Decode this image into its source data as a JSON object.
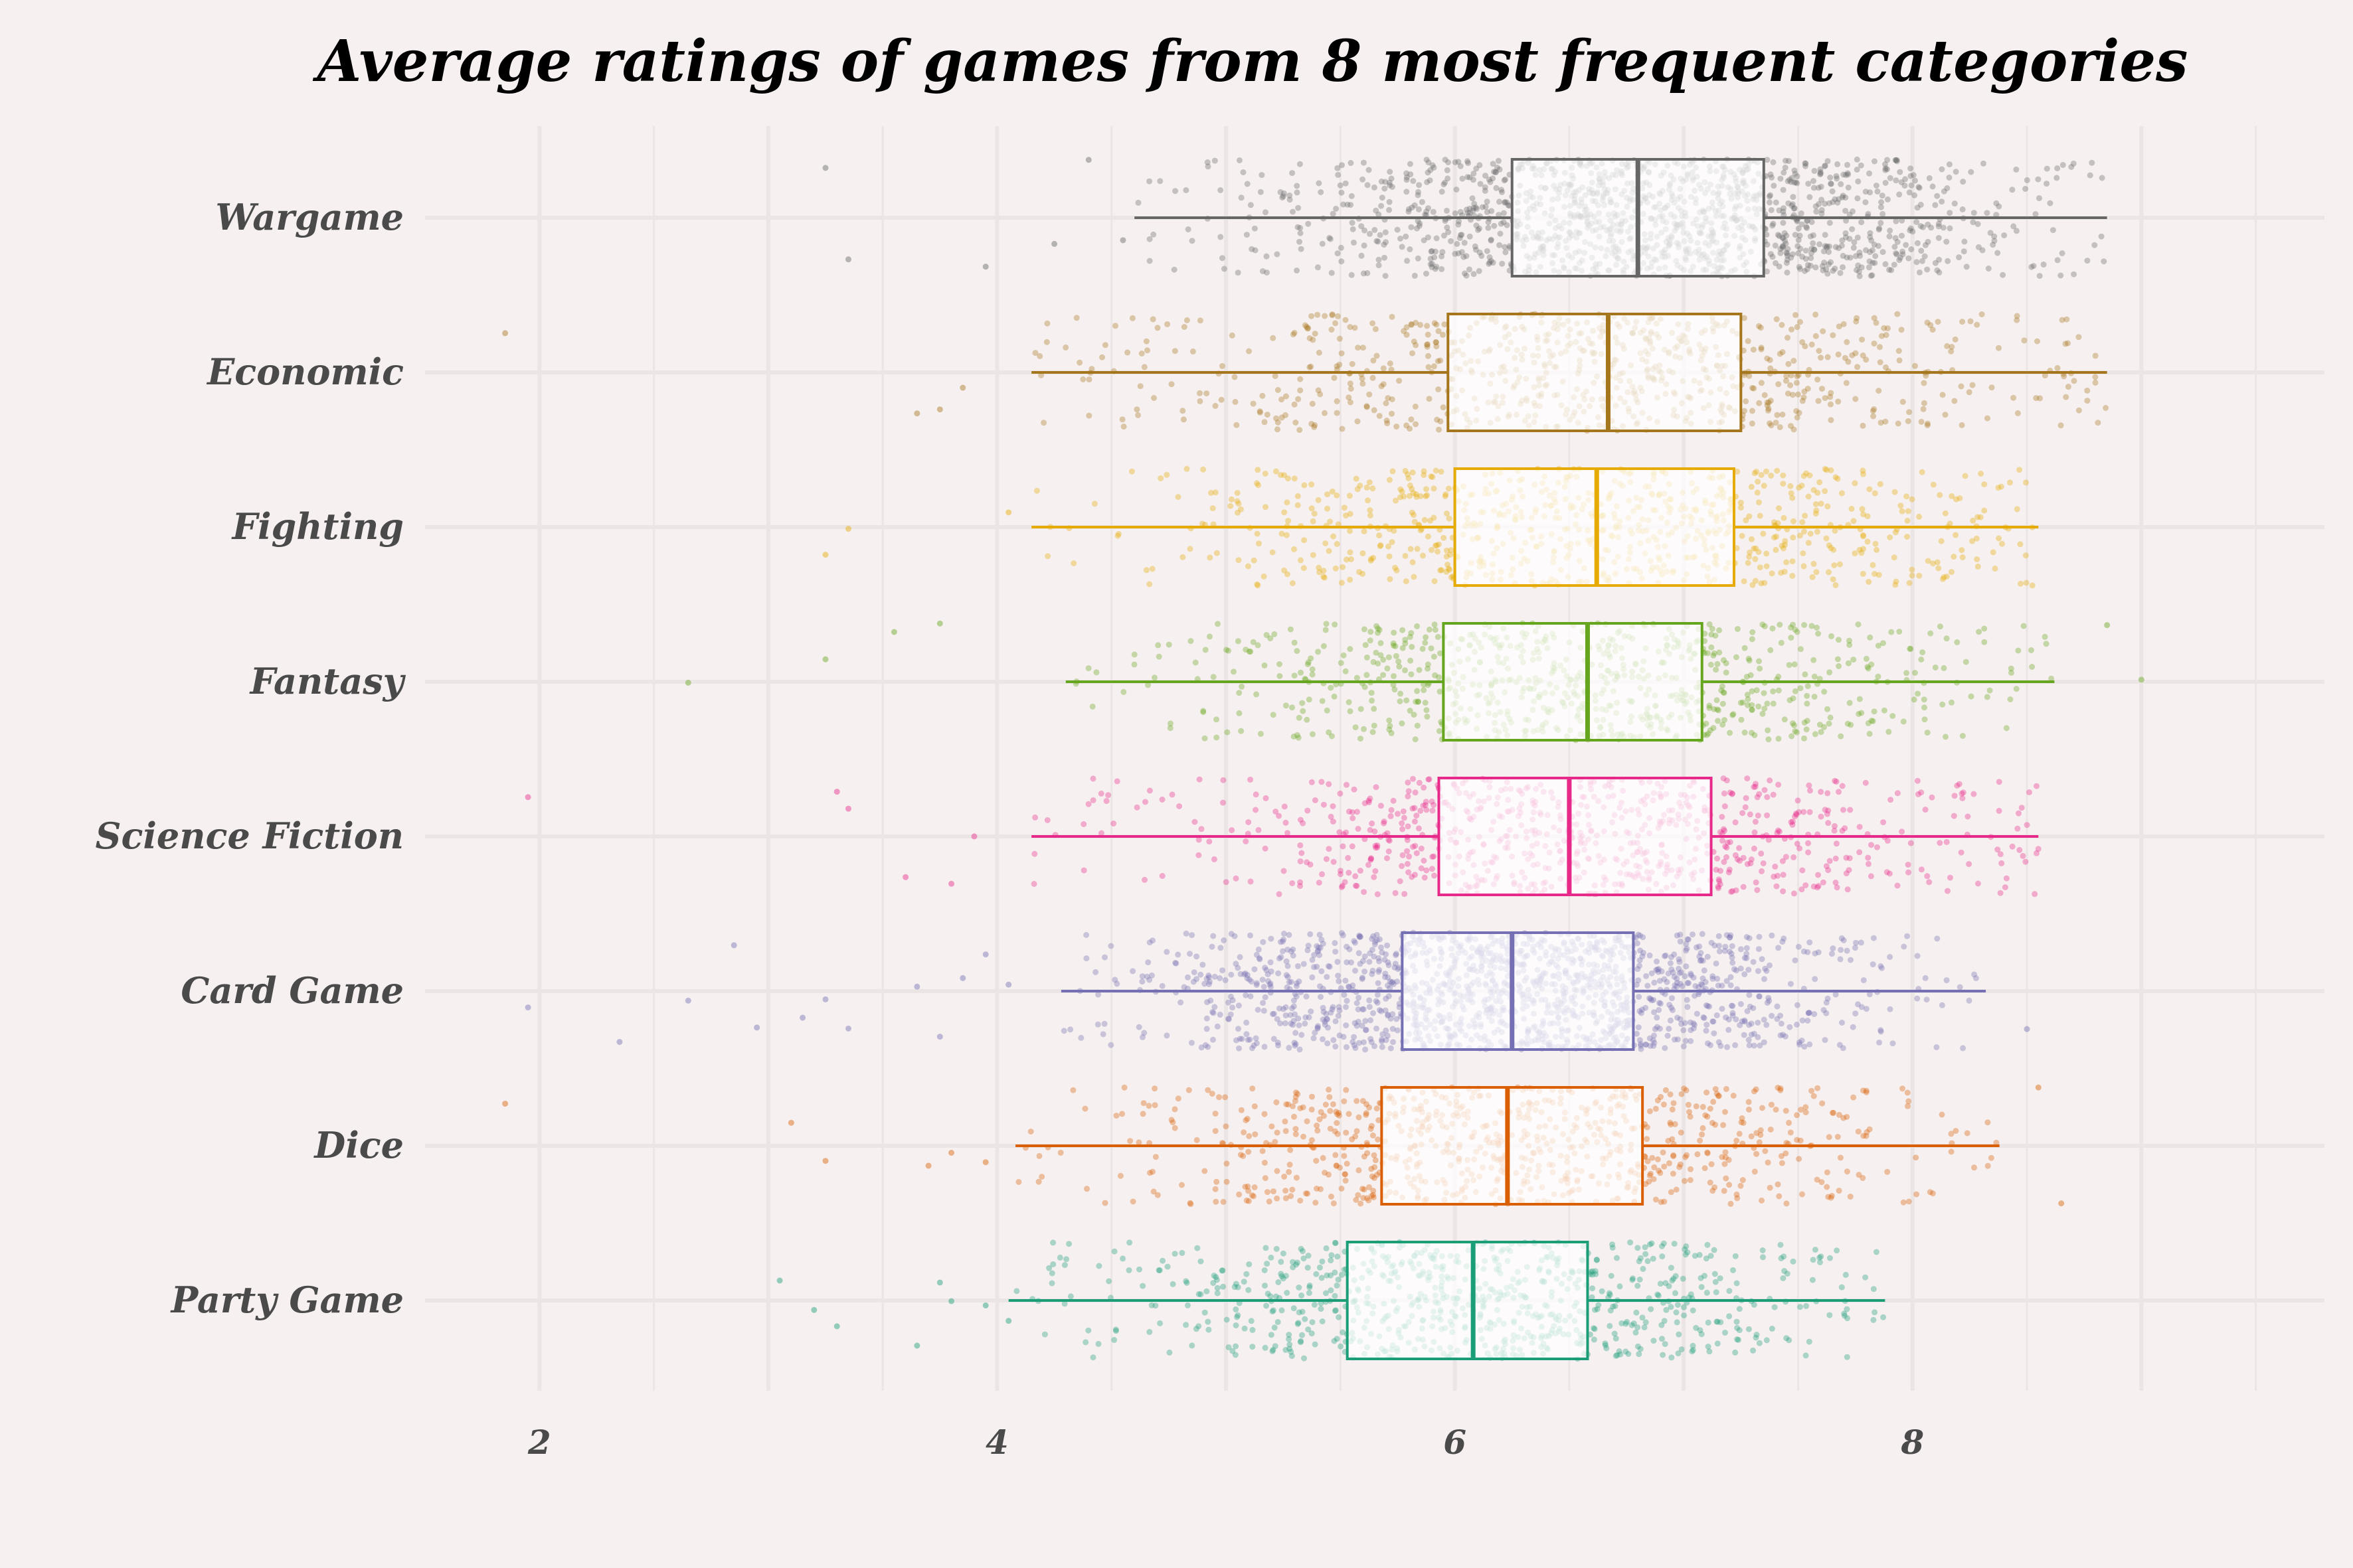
{
  "chart_data": {
    "type": "boxplot",
    "title": "Average ratings of games from 8 most frequent categories",
    "xlabel": "",
    "ylabel": "",
    "xlim": [
      1.5,
      9.8
    ],
    "x_ticks": [
      2,
      4,
      6,
      8
    ],
    "grid": true,
    "legend": "none",
    "categories": [
      "Wargame",
      "Economic",
      "Fighting",
      "Fantasy",
      "Science Fiction",
      "Card Game",
      "Dice",
      "Party Game"
    ],
    "series": [
      {
        "name": "Wargame",
        "color": "#666666",
        "whisker_low": 4.6,
        "q1": 6.25,
        "median": 6.8,
        "q3": 7.35,
        "whisker_high": 8.85,
        "outliers": [
          3.35,
          3.25,
          3.95,
          4.25,
          4.4,
          4.55
        ],
        "n": 1400
      },
      {
        "name": "Economic",
        "color": "#a6761d",
        "whisker_low": 4.15,
        "q1": 5.97,
        "median": 6.67,
        "q3": 7.25,
        "whisker_high": 8.85,
        "outliers": [
          1.85,
          3.65,
          3.85,
          3.75
        ],
        "n": 800
      },
      {
        "name": "Fighting",
        "color": "#e6ab02",
        "whisker_low": 4.15,
        "q1": 6.0,
        "median": 6.62,
        "q3": 7.22,
        "whisker_high": 8.55,
        "outliers": [
          3.25,
          3.35,
          4.05
        ],
        "n": 800
      },
      {
        "name": "Fantasy",
        "color": "#66a61e",
        "whisker_low": 4.3,
        "q1": 5.95,
        "median": 6.58,
        "q3": 7.08,
        "whisker_high": 8.62,
        "outliers": [
          2.65,
          3.25,
          3.75,
          3.55,
          9.0,
          8.85
        ],
        "n": 800
      },
      {
        "name": "Science Fiction",
        "color": "#e7298a",
        "whisker_low": 4.15,
        "q1": 5.93,
        "median": 6.5,
        "q3": 7.12,
        "whisker_high": 8.55,
        "outliers": [
          1.95,
          3.35,
          3.3,
          3.8,
          3.6,
          3.9
        ],
        "n": 800
      },
      {
        "name": "Card Game",
        "color": "#7570b3",
        "whisker_low": 4.28,
        "q1": 5.77,
        "median": 6.25,
        "q3": 6.78,
        "whisker_high": 8.32,
        "outliers": [
          1.95,
          2.35,
          2.65,
          2.95,
          2.85,
          3.25,
          3.15,
          3.35,
          3.65,
          3.75,
          3.85,
          3.95,
          4.05,
          8.5
        ],
        "n": 1500
      },
      {
        "name": "Dice",
        "color": "#d95f02",
        "whisker_low": 4.08,
        "q1": 5.68,
        "median": 6.23,
        "q3": 6.82,
        "whisker_high": 8.38,
        "outliers": [
          1.85,
          3.1,
          3.25,
          3.8,
          3.7,
          3.95,
          8.55,
          8.65
        ],
        "n": 800
      },
      {
        "name": "Party Game",
        "color": "#1b9e77",
        "whisker_low": 4.05,
        "q1": 5.53,
        "median": 6.08,
        "q3": 6.58,
        "whisker_high": 7.88,
        "outliers": [
          3.05,
          3.2,
          3.3,
          3.65,
          3.8,
          3.75,
          3.95,
          4.05
        ],
        "n": 800
      }
    ]
  }
}
